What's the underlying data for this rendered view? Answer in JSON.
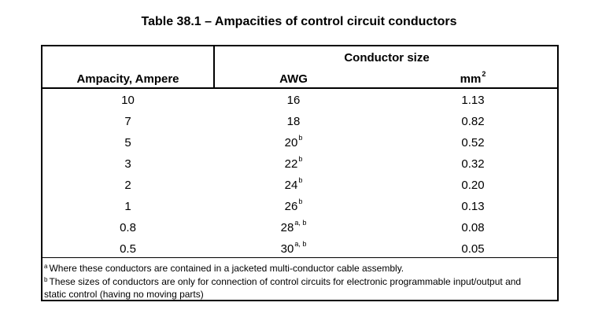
{
  "title": "Table 38.1 – Ampacities of control circuit conductors",
  "header": {
    "group": "Conductor size",
    "col1": "Ampacity, Ampere",
    "col2": "AWG",
    "col3_base": "mm",
    "col3_sup": "2"
  },
  "rows": [
    {
      "ampacity": "10",
      "awg": "16",
      "awg_sup": "",
      "mm2": "1.13"
    },
    {
      "ampacity": "7",
      "awg": "18",
      "awg_sup": "",
      "mm2": "0.82"
    },
    {
      "ampacity": "5",
      "awg": "20",
      "awg_sup": "b",
      "mm2": "0.52"
    },
    {
      "ampacity": "3",
      "awg": "22",
      "awg_sup": "b",
      "mm2": "0.32"
    },
    {
      "ampacity": "2",
      "awg": "24",
      "awg_sup": "b",
      "mm2": "0.20"
    },
    {
      "ampacity": "1",
      "awg": "26",
      "awg_sup": "b",
      "mm2": "0.13"
    },
    {
      "ampacity": "0.8",
      "awg": "28",
      "awg_sup": "a, b",
      "mm2": "0.08"
    },
    {
      "ampacity": "0.5",
      "awg": "30",
      "awg_sup": "a, b",
      "mm2": "0.05"
    }
  ],
  "footnotes": [
    {
      "mark": "a",
      "text": "Where these conductors are contained in a jacketed multi-conductor cable assembly."
    },
    {
      "mark": "b",
      "text": "These sizes of conductors are only for connection of control circuits for electronic programmable input/output and static control (having no moving parts)"
    }
  ]
}
